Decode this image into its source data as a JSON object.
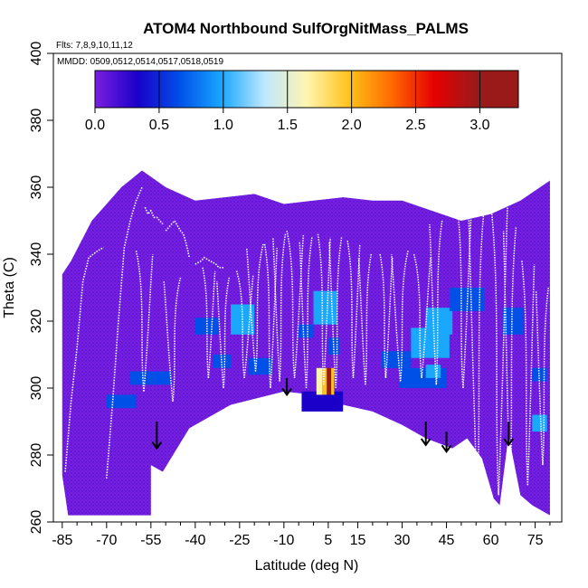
{
  "chart_data": {
    "type": "heatmap",
    "title": "ATOM4 Northbound SulfOrgNitMass_PALMS",
    "flights_text": "Flts: 7,8,9,10,11,12",
    "dates_text": "MMDD: 0509,0512,0514,0517,0518,0519",
    "xlabel": "Latitude (deg N)",
    "ylabel": "Theta (C)",
    "xlim": [
      -88,
      84
    ],
    "ylim": [
      260,
      400
    ],
    "x_ticks": [
      -85,
      -70,
      -55,
      -40,
      -25,
      -10,
      5,
      15,
      30,
      45,
      60,
      75
    ],
    "y_ticks": [
      260,
      280,
      300,
      320,
      340,
      360,
      380,
      400
    ],
    "colorbar": {
      "range": [
        0.0,
        3.3
      ],
      "tick_values": [
        0.0,
        0.5,
        1.0,
        1.5,
        2.0,
        2.5,
        3.0
      ],
      "tick_labels": [
        "0.0",
        "0.5",
        "1.0",
        "1.5",
        "2.0",
        "2.5",
        "3.0"
      ],
      "colors": [
        "#7a1fe0",
        "#1a00c8",
        "#0050e8",
        "#1aa8ff",
        "#bfe8ff",
        "#fff5b0",
        "#ffc21a",
        "#ff6a00",
        "#e60000",
        "#9a1a1a"
      ]
    },
    "field": {
      "background_value": 0.1,
      "lower_boundary": [
        [
          -85,
          274
        ],
        [
          -83,
          262
        ],
        [
          -55,
          262
        ],
        [
          -55,
          277
        ],
        [
          -51,
          275
        ],
        [
          -42,
          288
        ],
        [
          -28,
          295
        ],
        [
          -10,
          299
        ],
        [
          0,
          298
        ],
        [
          10,
          295
        ],
        [
          20,
          293
        ],
        [
          30,
          289
        ],
        [
          38,
          285
        ],
        [
          47,
          282
        ],
        [
          52,
          285
        ],
        [
          57,
          279
        ],
        [
          61,
          267
        ],
        [
          63,
          265
        ],
        [
          66,
          286
        ],
        [
          70,
          268
        ],
        [
          74,
          265
        ],
        [
          80,
          262
        ],
        [
          80,
          362
        ],
        [
          70,
          356
        ],
        [
          60,
          352
        ],
        [
          50,
          350
        ],
        [
          40,
          353
        ],
        [
          30,
          356
        ],
        [
          20,
          356
        ],
        [
          10,
          357
        ],
        [
          0,
          356
        ],
        [
          -10,
          355
        ],
        [
          -20,
          358
        ],
        [
          -30,
          357
        ],
        [
          -40,
          356
        ],
        [
          -50,
          360
        ],
        [
          -58,
          365
        ],
        [
          -65,
          360
        ],
        [
          -75,
          350
        ],
        [
          -82,
          338
        ],
        [
          -85,
          334
        ]
      ],
      "patches": [
        {
          "x": [
            -28,
            -20
          ],
          "y": [
            316,
            325
          ],
          "value": 1.0
        },
        {
          "x": [
            0,
            8
          ],
          "y": [
            319,
            329
          ],
          "value": 1.1
        },
        {
          "x": [
            -22,
            -14
          ],
          "y": [
            304,
            309
          ],
          "value": 0.9
        },
        {
          "x": [
            5,
            9
          ],
          "y": [
            310,
            315
          ],
          "value": 0.8
        },
        {
          "x": [
            -4,
            10
          ],
          "y": [
            293,
            299
          ],
          "value": 0.65
        },
        {
          "x": [
            23,
            33
          ],
          "y": [
            306,
            311
          ],
          "value": 0.9
        },
        {
          "x": [
            29,
            45
          ],
          "y": [
            300,
            306
          ],
          "value": 0.85
        },
        {
          "x": [
            33,
            46
          ],
          "y": [
            309,
            318
          ],
          "value": 1.15
        },
        {
          "x": [
            38,
            43
          ],
          "y": [
            303,
            307
          ],
          "value": 1.3
        },
        {
          "x": [
            38,
            47
          ],
          "y": [
            316,
            324
          ],
          "value": 1.05
        },
        {
          "x": [
            64,
            71
          ],
          "y": [
            316,
            324
          ],
          "value": 0.85
        },
        {
          "x": [
            -62,
            -48
          ],
          "y": [
            301,
            305
          ],
          "value": 0.75
        },
        {
          "x": [
            -40,
            -32
          ],
          "y": [
            316,
            321
          ],
          "value": 0.7
        },
        {
          "x": [
            74,
            79
          ],
          "y": [
            302,
            306
          ],
          "value": 0.9
        },
        {
          "x": [
            74,
            79
          ],
          "y": [
            287,
            292
          ],
          "value": 1.05
        },
        {
          "x": [
            46,
            58
          ],
          "y": [
            323,
            330
          ],
          "value": 0.75
        },
        {
          "x": [
            -70,
            -60
          ],
          "y": [
            294,
            298
          ],
          "value": 0.7
        },
        {
          "x": [
            -34,
            -28
          ],
          "y": [
            306,
            310
          ],
          "value": 0.85
        },
        {
          "x": [
            -5,
            0
          ],
          "y": [
            315,
            319
          ],
          "value": 0.75
        }
      ],
      "hotspot_cells": [
        {
          "x": [
            1,
            3
          ],
          "y": [
            298,
            306
          ],
          "value": 1.9
        },
        {
          "x": [
            3,
            4.5
          ],
          "y": [
            298,
            306
          ],
          "value": 2.3
        },
        {
          "x": [
            4.5,
            6
          ],
          "y": [
            298,
            306
          ],
          "value": 3.2
        },
        {
          "x": [
            6,
            7
          ],
          "y": [
            298,
            306
          ],
          "value": 2.0
        }
      ]
    },
    "flight_tracks": [
      [
        [
          -84,
          275
        ],
        [
          -82,
          296
        ],
        [
          -80,
          312
        ],
        [
          -78,
          332
        ],
        [
          -76,
          339
        ],
        [
          -73,
          341
        ],
        [
          -71,
          342
        ]
      ],
      [
        [
          -70,
          273
        ],
        [
          -68,
          295
        ],
        [
          -66,
          320
        ],
        [
          -64,
          342
        ],
        [
          -62,
          350
        ],
        [
          -60,
          356
        ],
        [
          -58,
          360
        ]
      ],
      [
        [
          -57,
          354
        ],
        [
          -56,
          352
        ],
        [
          -55,
          353
        ],
        [
          -54,
          351
        ],
        [
          -53,
          351
        ],
        [
          -52,
          350
        ],
        [
          -51,
          349
        ]
      ],
      [
        [
          -50,
          347
        ],
        [
          -48,
          349
        ],
        [
          -47,
          350
        ],
        [
          -45,
          347
        ],
        [
          -44,
          346
        ],
        [
          -43,
          343
        ],
        [
          -42,
          339
        ]
      ],
      [
        [
          -40,
          337
        ],
        [
          -38,
          338
        ],
        [
          -37,
          339
        ],
        [
          -35,
          338
        ],
        [
          -33,
          337
        ],
        [
          -32,
          336
        ],
        [
          -30,
          336
        ]
      ]
    ],
    "profiles": [
      {
        "x": -58,
        "top": 341,
        "bottom": 299,
        "dx": 2
      },
      {
        "x": -47,
        "top": 333,
        "bottom": 296,
        "dx": -2
      },
      {
        "x": -36,
        "top": 336,
        "bottom": 303,
        "dx": 1.5
      },
      {
        "x": -30,
        "top": 333,
        "bottom": 300,
        "dx": -1.5
      },
      {
        "x": -24,
        "top": 335,
        "bottom": 303,
        "dx": 2
      },
      {
        "x": -19,
        "top": 343,
        "bottom": 305,
        "dx": -2
      },
      {
        "x": -15,
        "top": 343,
        "bottom": 300,
        "dx": 1.5
      },
      {
        "x": -11,
        "top": 346,
        "bottom": 302,
        "dx": -1.5
      },
      {
        "x": -7,
        "top": 347,
        "bottom": 303,
        "dx": 2
      },
      {
        "x": -2,
        "top": 345,
        "bottom": 300,
        "dx": -1.5
      },
      {
        "x": 3,
        "top": 346,
        "bottom": 301,
        "dx": 1.5
      },
      {
        "x": 8,
        "top": 345,
        "bottom": 300,
        "dx": -1.5
      },
      {
        "x": 13,
        "top": 344,
        "bottom": 303,
        "dx": 1.5
      },
      {
        "x": 18,
        "top": 340,
        "bottom": 301,
        "dx": -1.5
      },
      {
        "x": 24,
        "top": 340,
        "bottom": 303,
        "dx": 1.5
      },
      {
        "x": 30,
        "top": 341,
        "bottom": 302,
        "dx": -2
      },
      {
        "x": 36,
        "top": 340,
        "bottom": 303,
        "dx": 2
      },
      {
        "x": 42,
        "top": 350,
        "bottom": 301,
        "dx": -1.5
      },
      {
        "x": 50,
        "top": 358,
        "bottom": 300,
        "dx": 2
      },
      {
        "x": 56,
        "top": 356,
        "bottom": 268,
        "dx": -2
      },
      {
        "x": 62,
        "top": 355,
        "bottom": 268,
        "dx": 2
      },
      {
        "x": 67,
        "top": 348,
        "bottom": 268,
        "dx": -1.5
      },
      {
        "x": 72,
        "top": 338,
        "bottom": 271,
        "dx": 1.5
      },
      {
        "x": 78,
        "top": 330,
        "bottom": 277,
        "dx": -1.5
      }
    ],
    "arrows": [
      {
        "x": -53,
        "y_top": 290,
        "y_tip": 282
      },
      {
        "x": -9,
        "y_top": 303,
        "y_tip": 298
      },
      {
        "x": 38,
        "y_top": 290,
        "y_tip": 283
      },
      {
        "x": 45,
        "y_top": 287,
        "y_tip": 281
      },
      {
        "x": 66,
        "y_top": 290,
        "y_tip": 283
      }
    ]
  }
}
